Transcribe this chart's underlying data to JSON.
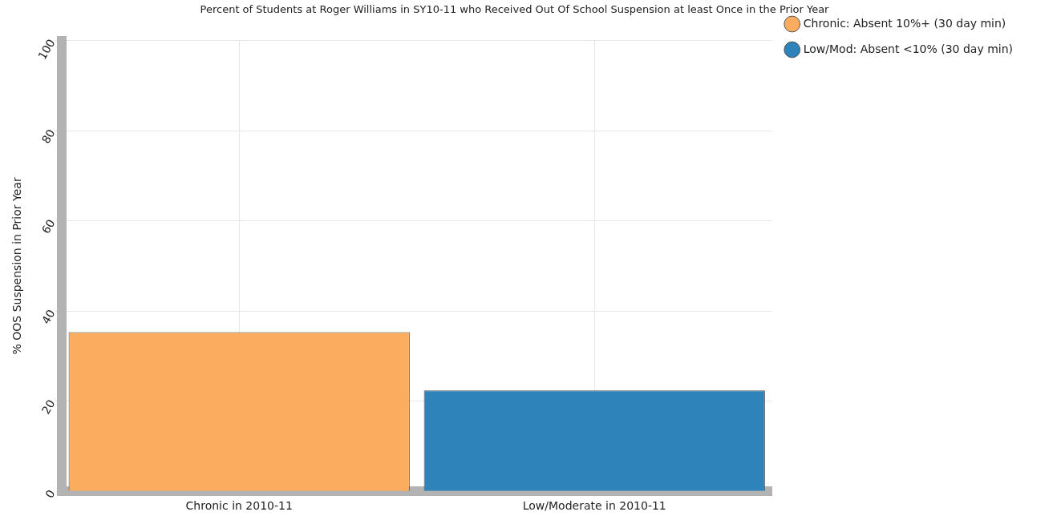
{
  "chart_data": {
    "type": "bar",
    "title": "Percent of Students at Roger Williams in SY10-11 who Received Out Of School Suspension at least Once in the Prior Year",
    "ylabel": "% OOS Suspension in Prior Year",
    "categories": [
      "Chronic in 2010-11",
      "Low/Moderate in 2010-11"
    ],
    "series": [
      {
        "name": "Chronic: Absent 10%+ (30 day min)",
        "color": "#fbac5e",
        "values": [
          35.3,
          null
        ]
      },
      {
        "name": "Low/Mod: Absent <10% (30 day min)",
        "color": "#2d83ba",
        "values": [
          null,
          22.4
        ]
      }
    ],
    "ylim": [
      0,
      100
    ],
    "yticks": [
      0,
      20,
      40,
      60,
      80,
      100
    ],
    "grid": true,
    "legend": "top right"
  }
}
